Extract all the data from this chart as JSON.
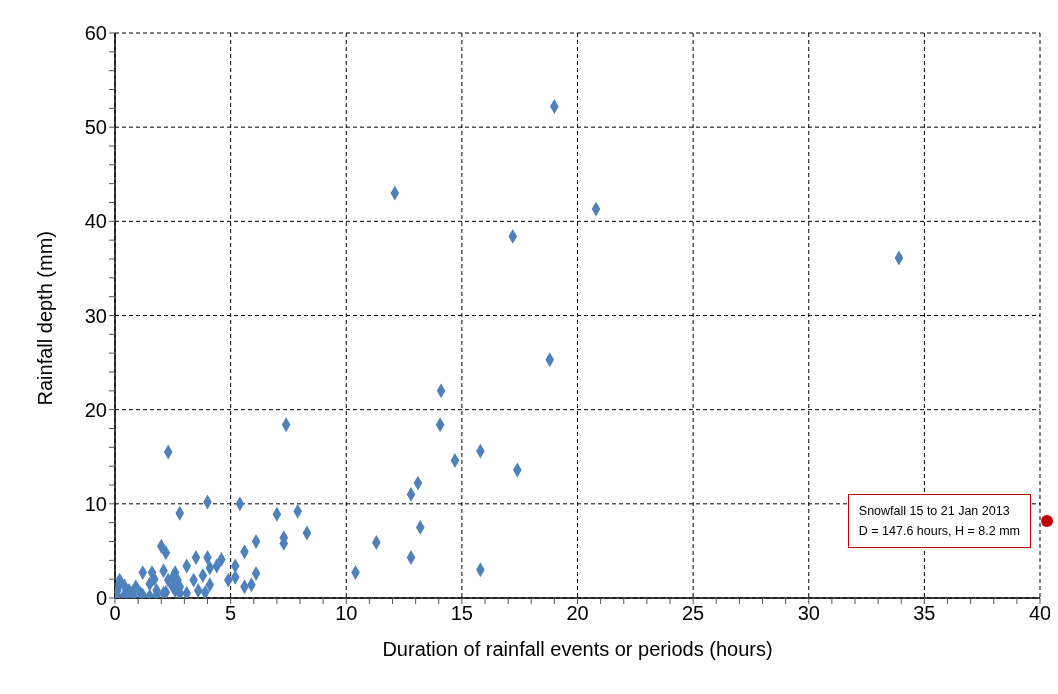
{
  "chart_data": {
    "type": "scatter",
    "xlabel": "Duration of rainfall events or periods (hours)",
    "ylabel": "Rainfall depth (mm)",
    "x": [
      19.0,
      12.1,
      20.8,
      17.2,
      33.9,
      18.8,
      14.1,
      14.06,
      7.4,
      15.8,
      14.7,
      17.4,
      13.1,
      12.8,
      13.2,
      11.3,
      12.8,
      10.4,
      15.8,
      2.3,
      4.0,
      5.4,
      2.8,
      7.0,
      7.9,
      8.3,
      7.3,
      7.3,
      6.1,
      5.6,
      6.1,
      5.2,
      5.2,
      4.9,
      5.9,
      5.6,
      2.0,
      2.2,
      3.5,
      4.0,
      4.6,
      4.4,
      4.1,
      3.8,
      3.4,
      3.1,
      3.6,
      3.9,
      4.1,
      3.1,
      1.2,
      1.6,
      2.1,
      2.6,
      2.7,
      2.3,
      2.5,
      1.8,
      1.5,
      2.1,
      2.8,
      2.5,
      1.7,
      1.2,
      0.9,
      0.7,
      0.2,
      0.1,
      0.4,
      0.6,
      0.1,
      0.8,
      0.2,
      1.5,
      1.8,
      2.2,
      2.6,
      2.8,
      1.1,
      0.4
    ],
    "values": [
      52.2,
      43.0,
      41.3,
      38.4,
      36.1,
      25.3,
      22.0,
      18.4,
      18.4,
      15.6,
      14.6,
      13.6,
      12.2,
      11.0,
      7.5,
      5.9,
      4.3,
      2.7,
      3.0,
      15.5,
      10.2,
      10.0,
      9.0,
      8.9,
      9.2,
      6.9,
      6.4,
      5.8,
      6.0,
      4.9,
      2.6,
      3.4,
      2.2,
      1.9,
      1.4,
      1.2,
      5.5,
      4.8,
      4.3,
      4.3,
      4.1,
      3.4,
      3.2,
      2.4,
      1.9,
      3.4,
      0.8,
      0.6,
      1.4,
      0.5,
      2.7,
      2.7,
      2.9,
      2.7,
      1.9,
      1.9,
      1.2,
      0.8,
      1.5,
      0.5,
      0.5,
      2.2,
      2.0,
      0.3,
      1.2,
      0.5,
      1.5,
      0.8,
      0.3,
      0.8,
      0.3,
      0.2,
      1.9,
      0.2,
      0.3,
      0.6,
      0.8,
      1.2,
      0.5,
      1.3
    ],
    "color": "#4f81bd",
    "marker": "diamond",
    "xlim": [
      0,
      40
    ],
    "xticks": [
      0,
      {
        "value": 1,
        "label": null
      },
      {
        "value": 2,
        "label": null
      },
      {
        "value": 3,
        "label": null
      },
      {
        "value": 4,
        "label": null
      },
      5,
      {
        "value": 6,
        "label": null
      },
      {
        "value": 7,
        "label": null
      },
      {
        "value": 8,
        "label": null
      },
      {
        "value": 9,
        "label": null
      },
      10,
      {
        "value": 11,
        "label": null
      },
      {
        "value": 12,
        "label": null
      },
      {
        "value": 13,
        "label": null
      },
      {
        "value": 14,
        "label": null
      },
      15,
      {
        "value": 16,
        "label": null
      },
      {
        "value": 17,
        "label": null
      },
      {
        "value": 18,
        "label": null
      },
      {
        "value": 19,
        "label": null
      },
      20,
      {
        "value": 21,
        "label": null
      },
      {
        "value": 22,
        "label": null
      },
      {
        "value": 23,
        "label": null
      },
      {
        "value": 24,
        "label": null
      },
      25,
      {
        "value": 26,
        "label": null
      },
      {
        "value": 27,
        "label": null
      },
      {
        "value": 28,
        "label": null
      },
      {
        "value": 29,
        "label": null
      },
      30,
      {
        "value": 31,
        "label": null
      },
      {
        "value": 32,
        "label": null
      },
      {
        "value": 33,
        "label": null
      },
      {
        "value": 34,
        "label": null
      },
      35,
      {
        "value": 36,
        "label": null
      },
      {
        "value": 37,
        "label": null
      },
      {
        "value": 38,
        "label": null
      },
      {
        "value": 39,
        "label": null
      },
      40
    ],
    "ylim": [
      0,
      60
    ],
    "yticks": [
      0,
      {
        "value": 2,
        "label": null
      },
      {
        "value": 4,
        "label": null
      },
      {
        "value": 6,
        "label": null
      },
      {
        "value": 8,
        "label": null
      },
      10,
      {
        "value": 12,
        "label": null
      },
      {
        "value": 14,
        "label": null
      },
      {
        "value": 16,
        "label": null
      },
      {
        "value": 18,
        "label": null
      },
      20,
      {
        "value": 22,
        "label": null
      },
      {
        "value": 24,
        "label": null
      },
      {
        "value": 26,
        "label": null
      },
      {
        "value": 28,
        "label": null
      },
      30,
      {
        "value": 32,
        "label": null
      },
      {
        "value": 34,
        "label": null
      },
      {
        "value": 36,
        "label": null
      },
      {
        "value": 38,
        "label": null
      },
      40,
      {
        "value": 42,
        "label": null
      },
      {
        "value": 44,
        "label": null
      },
      {
        "value": 46,
        "label": null
      },
      {
        "value": 48,
        "label": null
      },
      50,
      {
        "value": 52,
        "label": null
      },
      {
        "value": 54,
        "label": null
      },
      {
        "value": 56,
        "label": null
      },
      {
        "value": 58,
        "label": null
      },
      60
    ],
    "grid": true,
    "annotations": [
      "Snowfall 15 to 21 Jan 2013\nD = 147.6 hours, H = 8.2 mm"
    ]
  }
}
